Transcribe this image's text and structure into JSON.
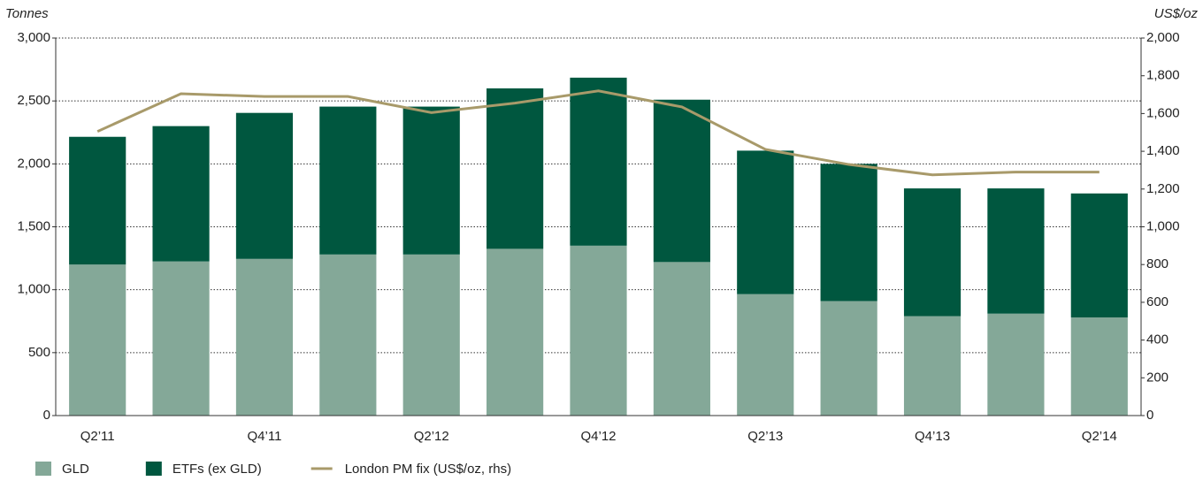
{
  "chart_data": {
    "type": "bar",
    "y_label": "Tonnes",
    "y2_label": "US$/oz",
    "categories": [
      "Q2’11",
      null,
      "Q4’11",
      null,
      "Q2’12",
      null,
      "Q4’12",
      null,
      "Q2’13",
      null,
      "Q4’13",
      null,
      "Q2’14"
    ],
    "series": [
      {
        "name": "GLD",
        "color": "#84a898",
        "values": [
          1200,
          1225,
          1245,
          1280,
          1280,
          1325,
          1350,
          1220,
          965,
          910,
          790,
          810,
          780
        ]
      },
      {
        "name": "ETFs (ex GLD)",
        "color": "#00573f",
        "values": [
          1015,
          1075,
          1160,
          1175,
          1175,
          1275,
          1335,
          1290,
          1140,
          1090,
          1015,
          995,
          985
        ]
      },
      {
        "name": "London PM fix (US$/oz, rhs)",
        "color": "#a89a6a",
        "axis": "y2",
        "type": "line",
        "values": [
          1505,
          1705,
          1690,
          1690,
          1605,
          1655,
          1720,
          1635,
          1410,
          1330,
          1275,
          1290,
          1290
        ]
      }
    ],
    "ylim": [
      0,
      3000
    ],
    "yticks": [
      0,
      500,
      {
        "value": 1000,
        "label": "1,000"
      },
      {
        "value": 1500,
        "label": "1,500"
      },
      {
        "value": 2000,
        "label": "2,000"
      },
      {
        "value": 2500,
        "label": "2,500"
      },
      {
        "value": 3000,
        "label": "3,000"
      }
    ],
    "y2lim": [
      0,
      2000
    ],
    "y2ticks": [
      0,
      200,
      400,
      600,
      800,
      {
        "value": 1000,
        "label": "1,000"
      },
      {
        "value": 1200,
        "label": "1,200"
      },
      {
        "value": 1400,
        "label": "1,400"
      },
      {
        "value": 1600,
        "label": "1,600"
      },
      {
        "value": 1800,
        "label": "1,800"
      },
      {
        "value": 2000,
        "label": "2,000"
      }
    ],
    "grid": true,
    "stacked": true,
    "legend": "bottom-left"
  }
}
